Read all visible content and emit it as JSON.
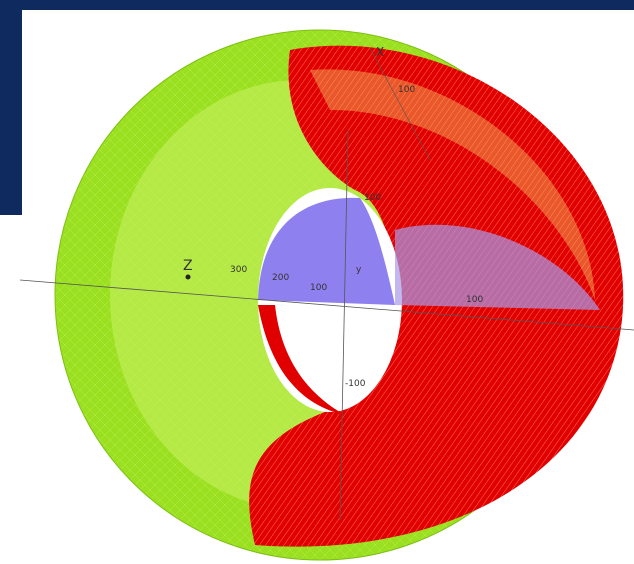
{
  "labels": {
    "z_axis": "Z",
    "x_axis": "X",
    "y_axis": "y",
    "tick_300": "300",
    "tick_200": "200",
    "tick_100": "100",
    "tick_top_100": "100",
    "tick_upper_100": "100",
    "tick_right_100": "100",
    "tick_minus_100": "-100"
  }
}
